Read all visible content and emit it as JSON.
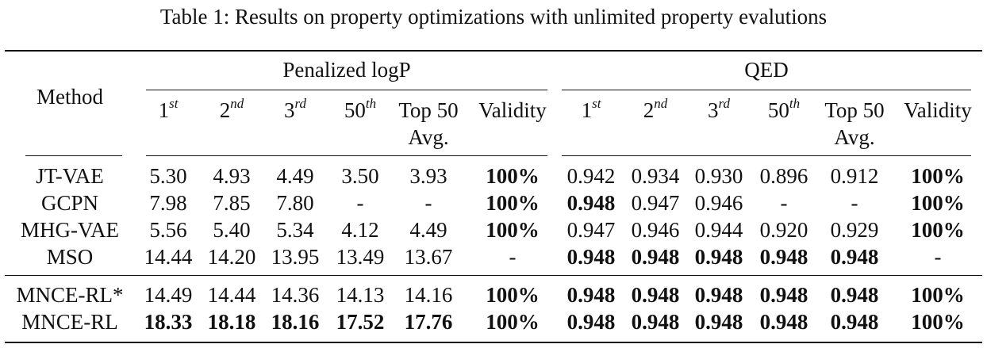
{
  "caption": "Table 1: Results on property optimizations with unlimited property evalutions",
  "header": {
    "method": "Method",
    "group_logp": "Penalized logP",
    "group_qed": "QED",
    "cols": [
      {
        "base": "1",
        "sup": "st"
      },
      {
        "base": "2",
        "sup": "nd"
      },
      {
        "base": "3",
        "sup": "rd"
      },
      {
        "base": "50",
        "sup": "th"
      },
      {
        "line1": "Top 50",
        "line2": "Avg."
      },
      {
        "line1": "Validity"
      }
    ]
  },
  "rows": [
    {
      "method": "JT-VAE",
      "logp": [
        {
          "v": "5.30",
          "b": false
        },
        {
          "v": "4.93",
          "b": false
        },
        {
          "v": "4.49",
          "b": false
        },
        {
          "v": "3.50",
          "b": false
        },
        {
          "v": "3.93",
          "b": false
        },
        {
          "v": "100%",
          "b": true
        }
      ],
      "qed": [
        {
          "v": "0.942",
          "b": false
        },
        {
          "v": "0.934",
          "b": false
        },
        {
          "v": "0.930",
          "b": false
        },
        {
          "v": "0.896",
          "b": false
        },
        {
          "v": "0.912",
          "b": false
        },
        {
          "v": "100%",
          "b": true
        }
      ]
    },
    {
      "method": "GCPN",
      "logp": [
        {
          "v": "7.98",
          "b": false
        },
        {
          "v": "7.85",
          "b": false
        },
        {
          "v": "7.80",
          "b": false
        },
        {
          "v": "-",
          "b": false
        },
        {
          "v": "-",
          "b": false
        },
        {
          "v": "100%",
          "b": true
        }
      ],
      "qed": [
        {
          "v": "0.948",
          "b": true
        },
        {
          "v": "0.947",
          "b": false
        },
        {
          "v": "0.946",
          "b": false
        },
        {
          "v": "-",
          "b": false
        },
        {
          "v": "-",
          "b": false
        },
        {
          "v": "100%",
          "b": true
        }
      ]
    },
    {
      "method": "MHG-VAE",
      "logp": [
        {
          "v": "5.56",
          "b": false
        },
        {
          "v": "5.40",
          "b": false
        },
        {
          "v": "5.34",
          "b": false
        },
        {
          "v": "4.12",
          "b": false
        },
        {
          "v": "4.49",
          "b": false
        },
        {
          "v": "100%",
          "b": true
        }
      ],
      "qed": [
        {
          "v": "0.947",
          "b": false
        },
        {
          "v": "0.946",
          "b": false
        },
        {
          "v": "0.944",
          "b": false
        },
        {
          "v": "0.920",
          "b": false
        },
        {
          "v": "0.929",
          "b": false
        },
        {
          "v": "100%",
          "b": true
        }
      ]
    },
    {
      "method": "MSO",
      "logp": [
        {
          "v": "14.44",
          "b": false
        },
        {
          "v": "14.20",
          "b": false
        },
        {
          "v": "13.95",
          "b": false
        },
        {
          "v": "13.49",
          "b": false
        },
        {
          "v": "13.67",
          "b": false
        },
        {
          "v": "-",
          "b": false
        }
      ],
      "qed": [
        {
          "v": "0.948",
          "b": true
        },
        {
          "v": "0.948",
          "b": true
        },
        {
          "v": "0.948",
          "b": true
        },
        {
          "v": "0.948",
          "b": true
        },
        {
          "v": "0.948",
          "b": true
        },
        {
          "v": "-",
          "b": false
        }
      ]
    },
    {
      "method": "MNCE-RL*",
      "logp": [
        {
          "v": "14.49",
          "b": false
        },
        {
          "v": "14.44",
          "b": false
        },
        {
          "v": "14.36",
          "b": false
        },
        {
          "v": "14.13",
          "b": false
        },
        {
          "v": "14.16",
          "b": false
        },
        {
          "v": "100%",
          "b": true
        }
      ],
      "qed": [
        {
          "v": "0.948",
          "b": true
        },
        {
          "v": "0.948",
          "b": true
        },
        {
          "v": "0.948",
          "b": true
        },
        {
          "v": "0.948",
          "b": true
        },
        {
          "v": "0.948",
          "b": true
        },
        {
          "v": "100%",
          "b": true
        }
      ]
    },
    {
      "method": "MNCE-RL",
      "logp": [
        {
          "v": "18.33",
          "b": true
        },
        {
          "v": "18.18",
          "b": true
        },
        {
          "v": "18.16",
          "b": true
        },
        {
          "v": "17.52",
          "b": true
        },
        {
          "v": "17.76",
          "b": true
        },
        {
          "v": "100%",
          "b": true
        }
      ],
      "qed": [
        {
          "v": "0.948",
          "b": true
        },
        {
          "v": "0.948",
          "b": true
        },
        {
          "v": "0.948",
          "b": true
        },
        {
          "v": "0.948",
          "b": true
        },
        {
          "v": "0.948",
          "b": true
        },
        {
          "v": "100%",
          "b": true
        }
      ]
    }
  ]
}
